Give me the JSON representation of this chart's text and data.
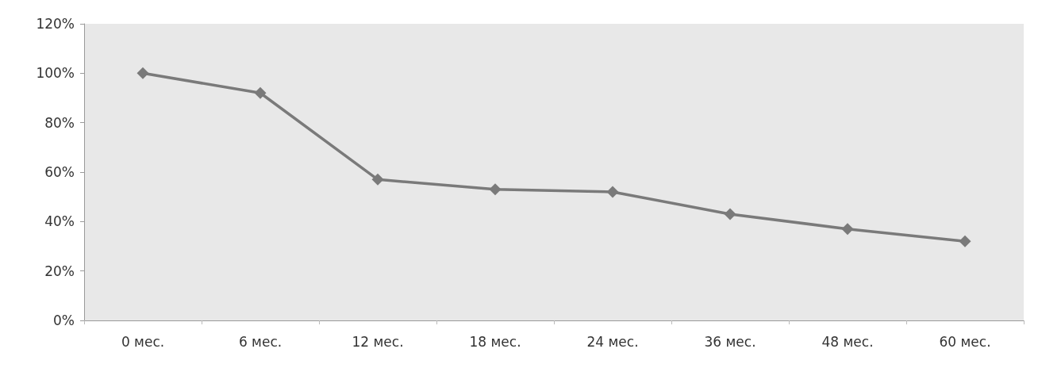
{
  "chart_data": {
    "type": "line",
    "categories": [
      "0 мес.",
      "6 мес.",
      "12 мес.",
      "18 мес.",
      "24 мес.",
      "36 мес.",
      "48 мес.",
      "60 мес."
    ],
    "series": [
      {
        "color": "#7a7a7a",
        "values": [
          100,
          92,
          57,
          53,
          52,
          43,
          37,
          32
        ]
      }
    ],
    "ylim": [
      0,
      120
    ],
    "yticks": [
      {
        "value": 0,
        "label": "0%"
      },
      {
        "value": 20,
        "label": "20%"
      },
      {
        "value": 40,
        "label": "40%"
      },
      {
        "value": 60,
        "label": "60%"
      },
      {
        "value": 80,
        "label": "80%"
      },
      {
        "value": 100,
        "label": "100%"
      },
      {
        "value": 120,
        "label": "120%"
      }
    ],
    "grid": false,
    "marker": "diamond",
    "line_style": "solid"
  }
}
